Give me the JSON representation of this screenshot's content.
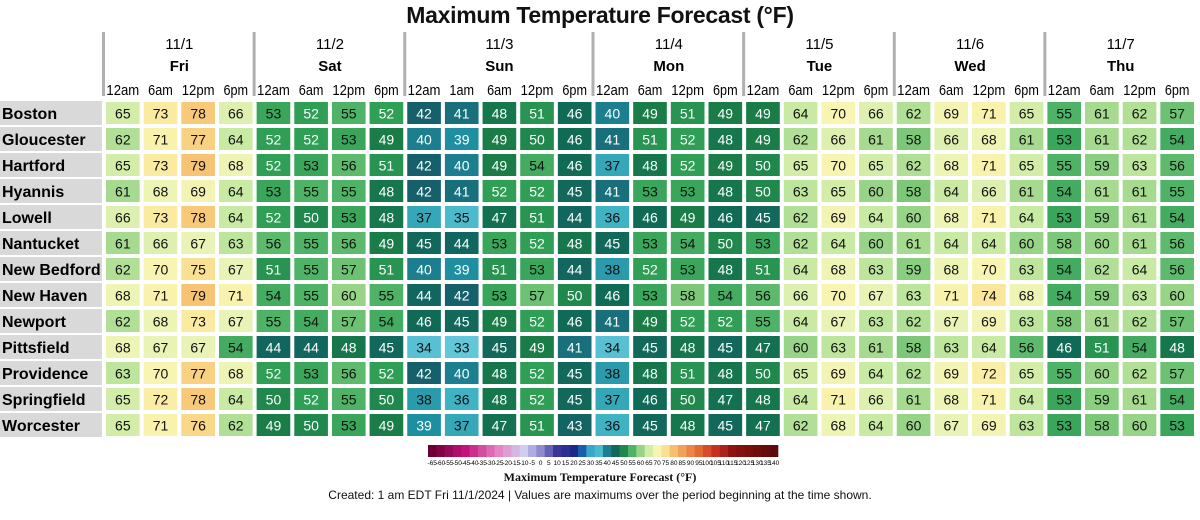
{
  "title": "Maximum Temperature Forecast (°F)",
  "chart_data": {
    "type": "heatmap",
    "title": "Maximum Temperature Forecast (°F)",
    "days": [
      {
        "date": "11/1",
        "day": "Fri",
        "times": [
          "12am",
          "6am",
          "12pm",
          "6pm"
        ]
      },
      {
        "date": "11/2",
        "day": "Sat",
        "times": [
          "12am",
          "6am",
          "12pm",
          "6pm"
        ]
      },
      {
        "date": "11/3",
        "day": "Sun",
        "times": [
          "12am",
          "1am",
          "6am",
          "12pm",
          "6pm"
        ]
      },
      {
        "date": "11/4",
        "day": "Mon",
        "times": [
          "12am",
          "6am",
          "12pm",
          "6pm"
        ]
      },
      {
        "date": "11/5",
        "day": "Tue",
        "times": [
          "12am",
          "6am",
          "12pm",
          "6pm"
        ]
      },
      {
        "date": "11/6",
        "day": "Wed",
        "times": [
          "12am",
          "6am",
          "12pm",
          "6pm"
        ]
      },
      {
        "date": "11/7",
        "day": "Thu",
        "times": [
          "12am",
          "6am",
          "12pm",
          "6pm"
        ]
      }
    ],
    "rows": [
      {
        "city": "Boston",
        "values": [
          65,
          73,
          78,
          66,
          53,
          52,
          55,
          52,
          42,
          41,
          48,
          51,
          46,
          40,
          49,
          51,
          49,
          49,
          64,
          70,
          66,
          62,
          69,
          71,
          65,
          55,
          61,
          62,
          57
        ]
      },
      {
        "city": "Gloucester",
        "values": [
          62,
          71,
          77,
          64,
          52,
          52,
          53,
          49,
          40,
          39,
          49,
          50,
          46,
          41,
          51,
          52,
          48,
          49,
          62,
          66,
          61,
          58,
          66,
          68,
          61,
          53,
          61,
          62,
          54
        ]
      },
      {
        "city": "Hartford",
        "values": [
          65,
          73,
          79,
          68,
          52,
          53,
          56,
          51,
          42,
          40,
          49,
          54,
          46,
          37,
          48,
          52,
          49,
          50,
          65,
          70,
          65,
          62,
          68,
          71,
          65,
          55,
          59,
          63,
          56
        ]
      },
      {
        "city": "Hyannis",
        "values": [
          61,
          68,
          69,
          64,
          53,
          55,
          55,
          48,
          42,
          41,
          52,
          52,
          45,
          41,
          53,
          53,
          48,
          50,
          63,
          65,
          60,
          58,
          64,
          66,
          61,
          54,
          61,
          61,
          55
        ]
      },
      {
        "city": "Lowell",
        "values": [
          66,
          73,
          78,
          64,
          52,
          50,
          53,
          48,
          37,
          35,
          47,
          51,
          44,
          36,
          46,
          49,
          46,
          45,
          62,
          69,
          64,
          60,
          68,
          71,
          64,
          53,
          59,
          61,
          54
        ]
      },
      {
        "city": "Nantucket",
        "values": [
          61,
          66,
          67,
          63,
          56,
          55,
          56,
          49,
          45,
          44,
          53,
          52,
          48,
          45,
          53,
          54,
          50,
          53,
          62,
          64,
          60,
          61,
          64,
          64,
          60,
          58,
          60,
          61,
          56
        ]
      },
      {
        "city": "New Bedford",
        "values": [
          62,
          70,
          75,
          67,
          51,
          55,
          57,
          51,
          40,
          39,
          51,
          53,
          44,
          38,
          52,
          53,
          48,
          51,
          64,
          68,
          63,
          59,
          68,
          70,
          63,
          54,
          62,
          64,
          56
        ]
      },
      {
        "city": "New Haven",
        "values": [
          68,
          71,
          79,
          71,
          54,
          55,
          60,
          55,
          44,
          42,
          53,
          57,
          50,
          46,
          53,
          58,
          54,
          56,
          66,
          70,
          67,
          63,
          71,
          74,
          68,
          54,
          59,
          63,
          60
        ]
      },
      {
        "city": "Newport",
        "values": [
          62,
          68,
          73,
          67,
          55,
          54,
          57,
          54,
          46,
          45,
          49,
          52,
          46,
          41,
          49,
          52,
          52,
          55,
          64,
          67,
          63,
          62,
          67,
          69,
          63,
          58,
          61,
          62,
          57
        ]
      },
      {
        "city": "Pittsfield",
        "values": [
          68,
          67,
          67,
          54,
          44,
          44,
          48,
          45,
          34,
          33,
          45,
          49,
          41,
          34,
          45,
          48,
          45,
          47,
          60,
          63,
          61,
          58,
          63,
          64,
          56,
          46,
          51,
          54,
          48
        ]
      },
      {
        "city": "Providence",
        "values": [
          63,
          70,
          77,
          68,
          52,
          53,
          56,
          52,
          42,
          40,
          48,
          52,
          45,
          38,
          48,
          51,
          48,
          50,
          65,
          69,
          64,
          62,
          69,
          72,
          65,
          55,
          60,
          62,
          57
        ]
      },
      {
        "city": "Springfield",
        "values": [
          65,
          72,
          78,
          64,
          50,
          52,
          55,
          50,
          38,
          36,
          48,
          52,
          45,
          37,
          46,
          50,
          47,
          48,
          64,
          71,
          66,
          61,
          68,
          71,
          64,
          53,
          59,
          61,
          54
        ]
      },
      {
        "city": "Worcester",
        "values": [
          65,
          71,
          76,
          62,
          49,
          50,
          53,
          49,
          39,
          37,
          47,
          51,
          43,
          36,
          45,
          48,
          45,
          47,
          62,
          68,
          64,
          60,
          67,
          69,
          63,
          53,
          58,
          60,
          53
        ]
      }
    ],
    "colorbar": {
      "ticks": [
        "-65",
        "-60",
        "-55",
        "-50",
        "-45",
        "-40",
        "-35",
        "-30",
        "-25",
        "-20",
        "-15",
        "-10",
        "-5",
        "0",
        "5",
        "10",
        "15",
        "20",
        "25",
        "30",
        "35",
        "40",
        "45",
        "50",
        "55",
        "60",
        "65",
        "70",
        "75",
        "80",
        "85",
        "90",
        "95",
        "100",
        "105",
        "110",
        "115",
        "120",
        "125",
        "130",
        "135",
        "140"
      ],
      "min": -65,
      "max": 140,
      "label": "Maximum Temperature Forecast (°F)"
    }
  },
  "footer": "Created: 1 am EDT Fri 11/1/2024  |  Values are maximums over the period beginning at the time shown."
}
